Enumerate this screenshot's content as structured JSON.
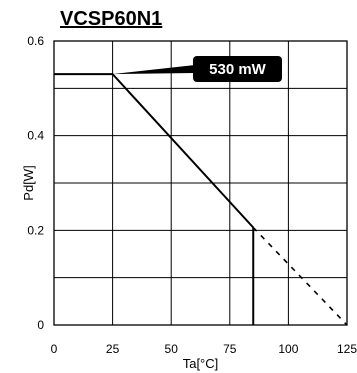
{
  "chart_data": {
    "type": "line",
    "title": "VCSP60N1",
    "xlabel": "Ta[°C]",
    "ylabel": "Pd[W]",
    "xlim": [
      0,
      125
    ],
    "ylim": [
      0,
      0.6
    ],
    "x_ticks": [
      0,
      25,
      50,
      75,
      100,
      125
    ],
    "y_ticks": [
      0,
      0.2,
      0.4,
      0.6
    ],
    "x_tick_labels": [
      "0",
      "25",
      "50",
      "75",
      "100",
      "125"
    ],
    "y_tick_labels": [
      "0",
      "0.2",
      "0.4",
      "0.6"
    ],
    "grid": true,
    "series": [
      {
        "style": "solid",
        "x": [
          0,
          25,
          85
        ],
        "y": [
          0.53,
          0.53,
          0.206
        ]
      },
      {
        "style": "solid",
        "x": [
          85,
          85
        ],
        "y": [
          0.206,
          0
        ]
      },
      {
        "style": "dashed",
        "x": [
          85,
          125
        ],
        "y": [
          0.206,
          0
        ]
      }
    ],
    "annotations": [
      {
        "text": "530 mW",
        "x": 25,
        "y": 0.53
      }
    ]
  }
}
